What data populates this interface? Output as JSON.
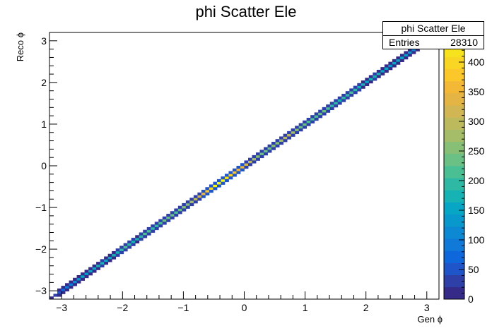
{
  "chart_data": {
    "type": "heatmap",
    "title": "phi Scatter Ele",
    "xlabel": "Gen ϕ",
    "ylabel": "Reco ϕ",
    "xlim": [
      -3.2,
      3.2
    ],
    "ylim": [
      -3.2,
      3.2
    ],
    "zlim": [
      0,
      450
    ],
    "x_ticks": [
      -3,
      -2,
      -1,
      0,
      1,
      2,
      3
    ],
    "x_tick_labels": [
      "−3",
      "−2",
      "−1",
      "0",
      "1",
      "2",
      "3"
    ],
    "y_ticks": [
      -3,
      -2,
      -1,
      0,
      1,
      2,
      3
    ],
    "y_tick_labels": [
      "−3",
      "−2",
      "−1",
      "0",
      "1",
      "2",
      "3"
    ],
    "z_ticks": [
      0,
      50,
      100,
      150,
      200,
      250,
      300,
      350,
      400
    ],
    "z_tick_labels": [
      "0",
      "50",
      "100",
      "150",
      "200",
      "250",
      "300",
      "350",
      "400"
    ],
    "z_top_label_partial": "0",
    "n_bins": 100,
    "diagonal_bin_counts": [
      20,
      40,
      60,
      80,
      90,
      100,
      120,
      140,
      150,
      130,
      150,
      160,
      170,
      180,
      160,
      150,
      170,
      180,
      190,
      210,
      200,
      180,
      170,
      190,
      210,
      220,
      200,
      190,
      210,
      230,
      240,
      230,
      220,
      240,
      250,
      260,
      280,
      300,
      320,
      350,
      370,
      400,
      430,
      450,
      440,
      420,
      400,
      380,
      360,
      340,
      320,
      300,
      280,
      260,
      240,
      230,
      240,
      250,
      260,
      280,
      300,
      290,
      270,
      250,
      240,
      230,
      220,
      210,
      220,
      230,
      240,
      220,
      200,
      190,
      180,
      190,
      200,
      210,
      190,
      180,
      170,
      160,
      170,
      180,
      170,
      160,
      150,
      140,
      150,
      160,
      150,
      140,
      130,
      120,
      110,
      100,
      90,
      80,
      60,
      40
    ],
    "stats": {
      "name": "phi Scatter Ele",
      "entries_label": "Entries",
      "entries": "28310"
    },
    "palette": [
      "#352a87",
      "#2e3fa8",
      "#1f55c9",
      "#0f68db",
      "#1179d8",
      "#0d88d2",
      "#0998cb",
      "#06a6c4",
      "#17b2b4",
      "#2fb9a5",
      "#4bbf94",
      "#6ac085",
      "#88bf76",
      "#a5bd69",
      "#bdba5e",
      "#d2b654",
      "#e4b445",
      "#f3b936",
      "#fbc72b",
      "#f9d524",
      "#f6e31e",
      "#f9fb0e"
    ]
  }
}
